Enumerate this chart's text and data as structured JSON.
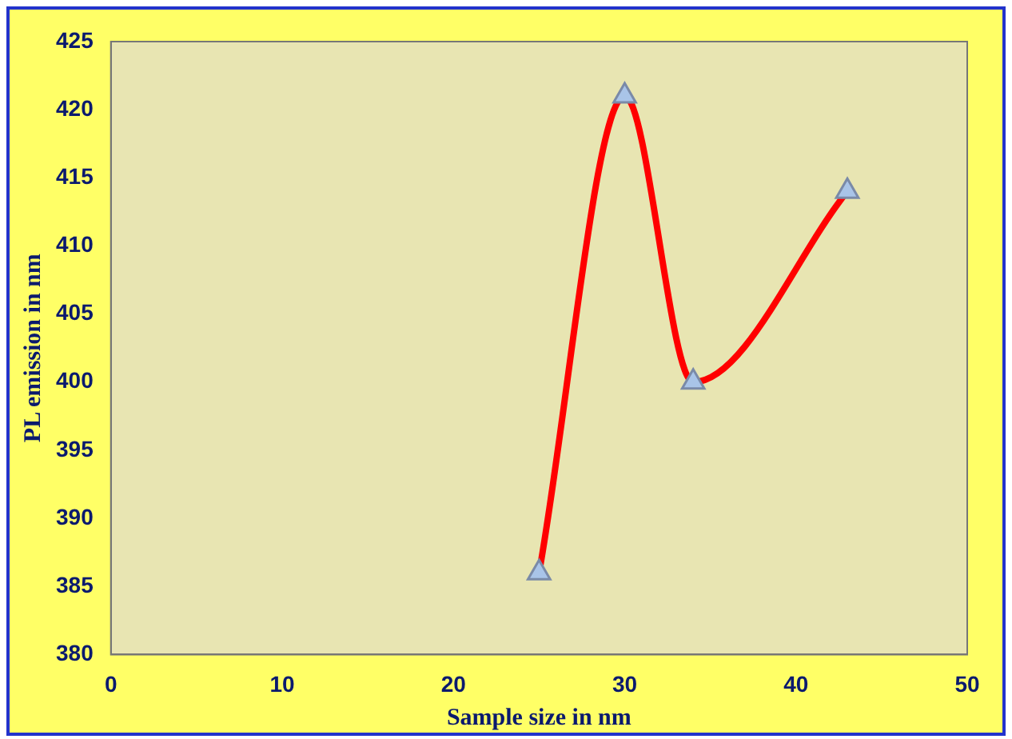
{
  "chart_data": {
    "type": "line",
    "xlabel": "Sample size in nm",
    "ylabel": "PL emission in nm",
    "x": [
      25,
      30,
      34,
      43
    ],
    "series": [
      {
        "color": "#ff0000",
        "values": [
          386,
          421,
          400,
          414
        ]
      }
    ],
    "xlim": [
      0,
      50
    ],
    "xticks": [
      0,
      10,
      20,
      30,
      40,
      50
    ],
    "ylim": [
      380,
      425
    ],
    "yticks": [
      380,
      385,
      390,
      395,
      400,
      405,
      410,
      415,
      420,
      425
    ],
    "grid": false,
    "legend": false,
    "marker": "triangle",
    "line_style": "solid"
  }
}
